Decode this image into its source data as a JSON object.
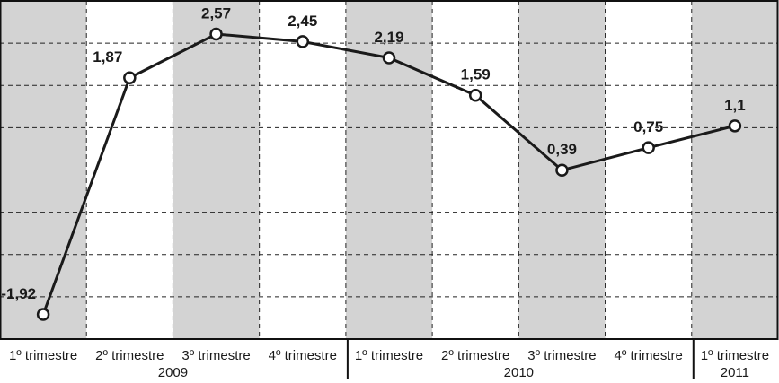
{
  "chart_data": {
    "type": "line",
    "groups": [
      {
        "name": "2009",
        "categories": [
          "1º trimestre",
          "2º trimestre",
          "3º trimestre",
          "4º trimestre"
        ]
      },
      {
        "name": "2010",
        "categories": [
          "1º trimestre",
          "2º trimestre",
          "3º trimestre",
          "4º trimestre"
        ]
      },
      {
        "name": "2011",
        "categories": [
          "1º trimestre"
        ]
      }
    ],
    "series": [
      {
        "color": "#1a1a1a",
        "values": [
          -1.92,
          1.87,
          2.57,
          2.45,
          2.19,
          1.59,
          0.39,
          0.75,
          1.1
        ],
        "value_labels": [
          "-1,92",
          "1,87",
          "2,57",
          "2,45",
          "2,19",
          "1,59",
          "0,39",
          "0,75",
          "1,1"
        ]
      }
    ],
    "ylim": [
      -2.2,
      2.8
    ],
    "grid": true
  }
}
